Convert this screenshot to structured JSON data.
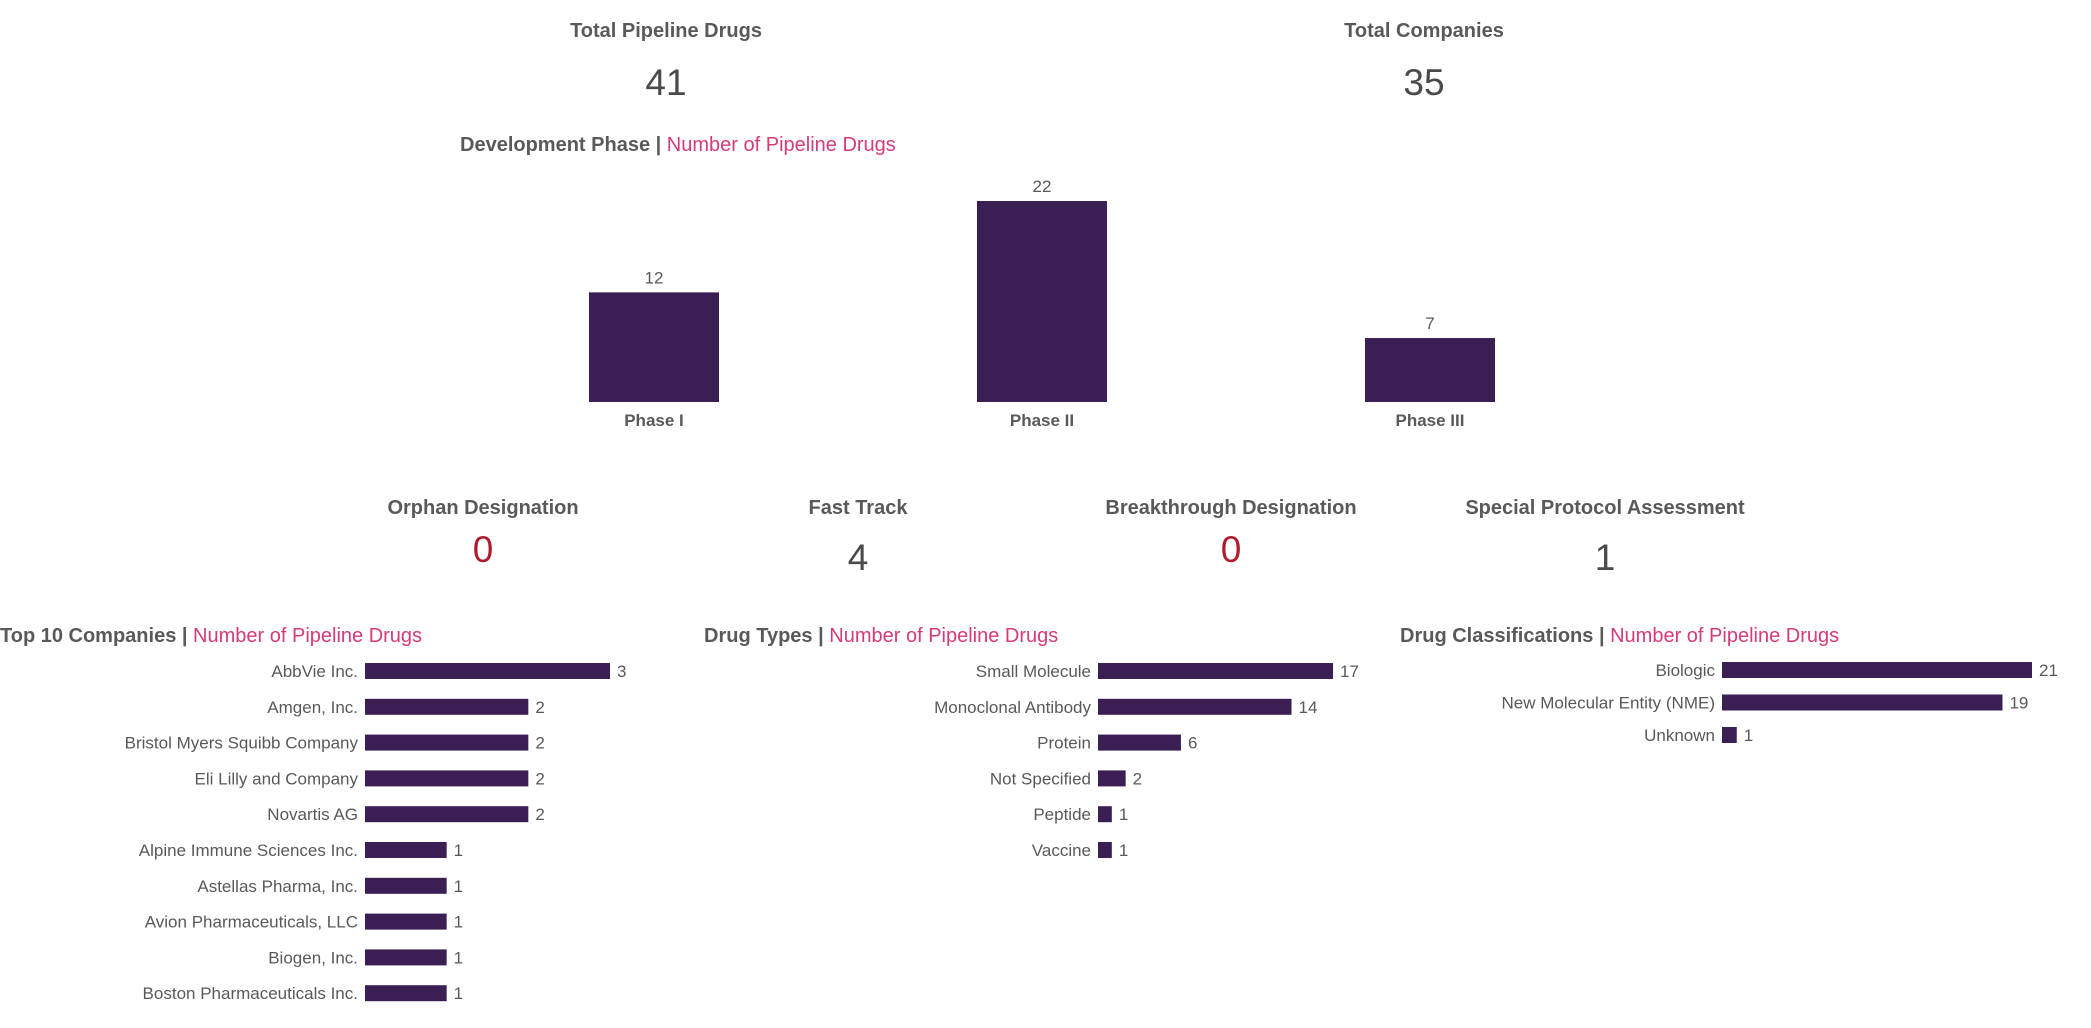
{
  "colors": {
    "bar": "#3b1f54",
    "accent": "#d63a7a",
    "zero": "#b01c2e",
    "text": "#595959"
  },
  "kpis": {
    "total_pipeline_drugs": {
      "label": "Total Pipeline Drugs",
      "value": "41"
    },
    "total_companies": {
      "label": "Total Companies",
      "value": "35"
    }
  },
  "designations": {
    "orphan": {
      "label": "Orphan Designation",
      "value": "0"
    },
    "fast_track": {
      "label": "Fast Track",
      "value": "4"
    },
    "breakthrough": {
      "label": "Breakthrough Designation",
      "value": "0"
    },
    "spa": {
      "label": "Special Protocol Assessment",
      "value": "1"
    }
  },
  "sections": {
    "phase": {
      "title": "Development Phase",
      "sep": " | ",
      "measure": "Number of Pipeline Drugs"
    },
    "companies": {
      "title": "Top 10 Companies",
      "sep": " | ",
      "measure": "Number of Pipeline Drugs"
    },
    "types": {
      "title": "Drug Types",
      "sep": " | ",
      "measure": "Number of Pipeline Drugs"
    },
    "classes": {
      "title": "Drug Classifications",
      "sep": " | ",
      "measure": "Number of Pipeline Drugs"
    }
  },
  "chart_data": [
    {
      "id": "phase",
      "type": "bar",
      "title": "Development Phase | Number of Pipeline Drugs",
      "categories": [
        "Phase I",
        "Phase II",
        "Phase III"
      ],
      "values": [
        12,
        22,
        7
      ],
      "ylim": [
        0,
        22
      ],
      "grid": false
    },
    {
      "id": "companies",
      "type": "bar",
      "orientation": "horizontal",
      "title": "Top 10 Companies | Number of Pipeline Drugs",
      "categories": [
        "AbbVie Inc.",
        "Amgen, Inc.",
        "Bristol Myers Squibb Company",
        "Eli Lilly and Company",
        "Novartis AG",
        "Alpine Immune Sciences Inc.",
        "Astellas Pharma, Inc.",
        "Avion Pharmaceuticals, LLC",
        "Biogen, Inc.",
        "Boston Pharmaceuticals Inc."
      ],
      "values": [
        3,
        2,
        2,
        2,
        2,
        1,
        1,
        1,
        1,
        1
      ],
      "xlim": [
        0,
        3
      ],
      "grid": false
    },
    {
      "id": "types",
      "type": "bar",
      "orientation": "horizontal",
      "title": "Drug Types | Number of Pipeline Drugs",
      "categories": [
        "Small Molecule",
        "Monoclonal Antibody",
        "Protein",
        "Not Specified",
        "Peptide",
        "Vaccine"
      ],
      "values": [
        17,
        14,
        6,
        2,
        1,
        1
      ],
      "xlim": [
        0,
        17
      ],
      "grid": false
    },
    {
      "id": "classes",
      "type": "bar",
      "orientation": "horizontal",
      "title": "Drug Classifications | Number of Pipeline Drugs",
      "categories": [
        "Biologic",
        "New Molecular Entity (NME)",
        "Unknown"
      ],
      "values": [
        21,
        19,
        1
      ],
      "xlim": [
        0,
        21
      ],
      "grid": false
    }
  ]
}
